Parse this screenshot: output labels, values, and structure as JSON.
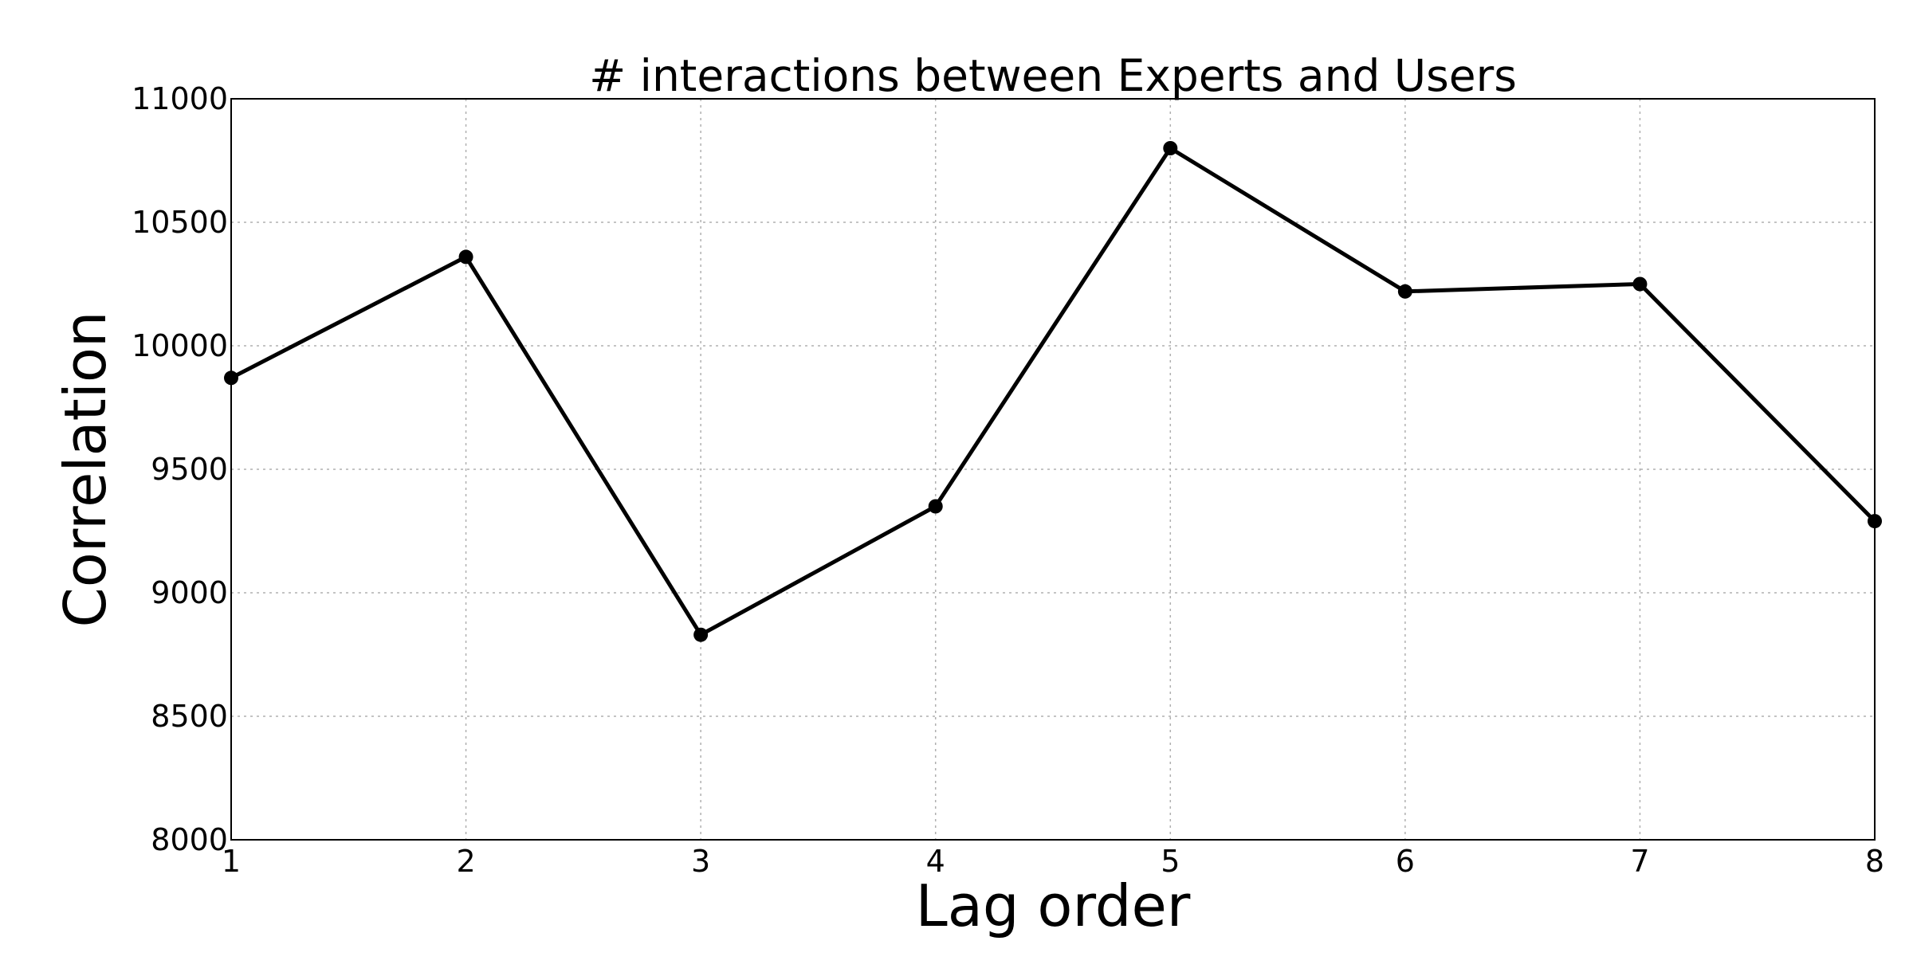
{
  "chart_data": {
    "type": "line",
    "title": "# interactions between Experts and Users",
    "xlabel": "Lag order",
    "ylabel": "Correlation",
    "x": [
      1,
      2,
      3,
      4,
      5,
      6,
      7,
      8
    ],
    "xlim": [
      1,
      8
    ],
    "ylim": [
      8000,
      11000
    ],
    "xticks": [
      "1",
      "2",
      "3",
      "4",
      "5",
      "6",
      "7",
      "8"
    ],
    "yticks": [
      "8000",
      "8500",
      "9000",
      "9500",
      "10000",
      "10500",
      "11000"
    ],
    "series": [
      {
        "values": [
          9870,
          10360,
          8830,
          9350,
          10800,
          10220,
          10250,
          9290
        ]
      }
    ],
    "grid": true,
    "line_color": "#000000"
  }
}
